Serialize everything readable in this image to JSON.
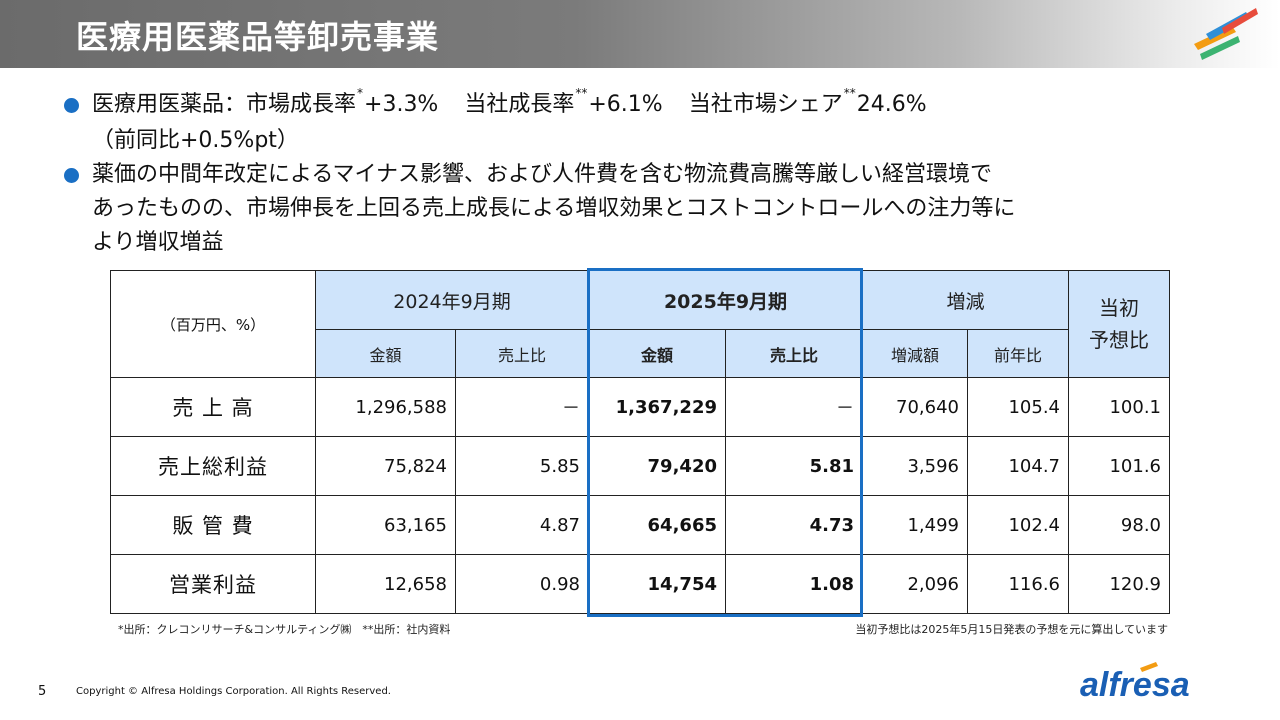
{
  "header": {
    "title": "医療用医薬品等卸売事業"
  },
  "bullets": {
    "b1_line1_part1": "医療用医薬品：市場成長率",
    "b1_mark1": "*",
    "b1_val1": "+3.3%",
    "b1_part2": "当社成長率",
    "b1_mark2": "**",
    "b1_val2": "+6.1%",
    "b1_part3": "当社市場シェア",
    "b1_mark3": "**",
    "b1_val3": "24.6%",
    "b1_line2": "（前同比+0.5%pt）",
    "b2_line1": "薬価の中間年改定によるマイナス影響、および人件費を含む物流費高騰等厳しい経営環境で",
    "b2_line2": "あったものの、市場伸長を上回る売上成長による増収効果とコストコントロールへの注力等に",
    "b2_line3": "より増収増益"
  },
  "table": {
    "unit_label": "（百万円、%）",
    "group_2024": "2024年9月期",
    "group_2025": "2025年9月期",
    "group_change": "増減",
    "initial_forecast": "当初\n予想比",
    "sub_amount_2024": "金額",
    "sub_ratio_2024": "売上比",
    "sub_amount_2025": "金額",
    "sub_ratio_2025": "売上比",
    "sub_change_amount": "増減額",
    "sub_yoy": "前年比",
    "rows": [
      {
        "label": "売 上 高",
        "amt2024": "1,296,588",
        "ratio2024": "－",
        "amt2025": "1,367,229",
        "ratio2025": "－",
        "change": "70,640",
        "yoy": "105.4",
        "forecast": "100.1"
      },
      {
        "label": "売上総利益",
        "amt2024": "75,824",
        "ratio2024": "5.85",
        "amt2025": "79,420",
        "ratio2025": "5.81",
        "change": "3,596",
        "yoy": "104.7",
        "forecast": "101.6"
      },
      {
        "label": "販 管 費",
        "amt2024": "63,165",
        "ratio2024": "4.87",
        "amt2025": "64,665",
        "ratio2025": "4.73",
        "change": "1,499",
        "yoy": "102.4",
        "forecast": "98.0"
      },
      {
        "label": "営業利益",
        "amt2024": "12,658",
        "ratio2024": "0.98",
        "amt2025": "14,754",
        "ratio2025": "1.08",
        "change": "2,096",
        "yoy": "116.6",
        "forecast": "120.9"
      }
    ]
  },
  "notes": {
    "left": "*出所：クレコンリサーチ&コンサルティング㈱　**出所：社内資料",
    "right": "当初予想比は2025年5月15日発表の予想を元に算出しています"
  },
  "footer": {
    "page_number": "5",
    "copyright": "Copyright © Alfresa Holdings Corporation. All Rights Reserved.",
    "brand": "alfresa"
  },
  "colors": {
    "accent": "#1a6fc4",
    "header_fill": "#cfe4fb"
  }
}
